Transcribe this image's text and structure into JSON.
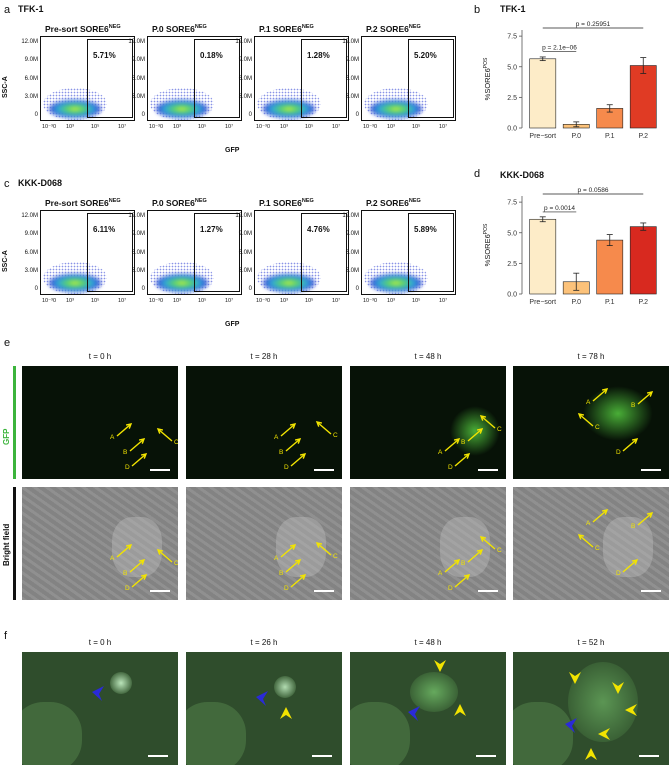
{
  "panels": {
    "a": {
      "letter": "a",
      "title": "TFK-1"
    },
    "b": {
      "letter": "b",
      "title": "TFK-1"
    },
    "c": {
      "letter": "c",
      "title": "KKK-D068"
    },
    "d": {
      "letter": "d",
      "title": "KKK-D068"
    },
    "e": {
      "letter": "e"
    },
    "f": {
      "letter": "f"
    }
  },
  "flow": {
    "ylabel": "SSC-A",
    "xlabel": "GFP",
    "yticks": [
      "12.0M",
      "9.0M",
      "6.0M",
      "3.0M",
      "0"
    ],
    "xticks": [
      "10⁻³",
      "0",
      "10³",
      "10⁵",
      "10⁷"
    ],
    "title_prefixes": [
      "Pre-sort SORE6",
      "P.0 SORE6",
      "P.1 SORE6",
      "P.2 SORE6"
    ],
    "title_sup": "NEG",
    "tfk1_percents": [
      "5.71%",
      "0.18%",
      "1.28%",
      "5.20%"
    ],
    "kkk_percents": [
      "6.11%",
      "1.27%",
      "4.76%",
      "5.89%"
    ]
  },
  "chart_data": [
    {
      "type": "bar",
      "title": "TFK-1",
      "categories": [
        "Pre−sort",
        "P.0",
        "P.1",
        "P.2"
      ],
      "values": [
        5.65,
        0.3,
        1.6,
        5.1
      ],
      "errors": [
        0.15,
        0.2,
        0.3,
        0.65
      ],
      "ylabel": "%SORE6",
      "ylabel_sup": "POS",
      "ylim": [
        0,
        8
      ],
      "yticks": [
        "0.0",
        "2.5",
        "5.0",
        "7.5"
      ],
      "colors": [
        "#fdecc8",
        "#fcc27a",
        "#f68a4c",
        "#e03b24"
      ],
      "annotations": [
        {
          "text": "p = 2.1e−06",
          "from": 0,
          "to": 1
        },
        {
          "text": "p = 0.25951",
          "from": 0,
          "to": 3
        }
      ]
    },
    {
      "type": "bar",
      "title": "KKK-D068",
      "categories": [
        "Pre−sort",
        "P.0",
        "P.1",
        "P.2"
      ],
      "values": [
        6.1,
        1.0,
        4.4,
        5.5
      ],
      "errors": [
        0.2,
        0.7,
        0.45,
        0.3
      ],
      "ylabel": "%SORE6",
      "ylabel_sup": "POS",
      "ylim": [
        0,
        8
      ],
      "yticks": [
        "0.0",
        "2.5",
        "5.0",
        "7.5"
      ],
      "colors": [
        "#fdecc8",
        "#fcc27a",
        "#f68a4c",
        "#d8291f"
      ],
      "annotations": [
        {
          "text": "p = 0.0014",
          "from": 0,
          "to": 1
        },
        {
          "text": "p = 0.0586",
          "from": 0,
          "to": 3
        }
      ]
    }
  ],
  "timelapse_e": {
    "times": [
      "t = 0 h",
      "t = 28 h",
      "t = 48 h",
      "t = 78 h"
    ],
    "row_labels": [
      "GFP",
      "Bright field"
    ],
    "row_colors": [
      "#3cb43c",
      "#111111"
    ],
    "arrow_letters": [
      "A",
      "B",
      "C",
      "D"
    ]
  },
  "timelapse_f": {
    "times": [
      "t = 0 h",
      "t = 26 h",
      "t = 48 h",
      "t = 52 h"
    ]
  }
}
